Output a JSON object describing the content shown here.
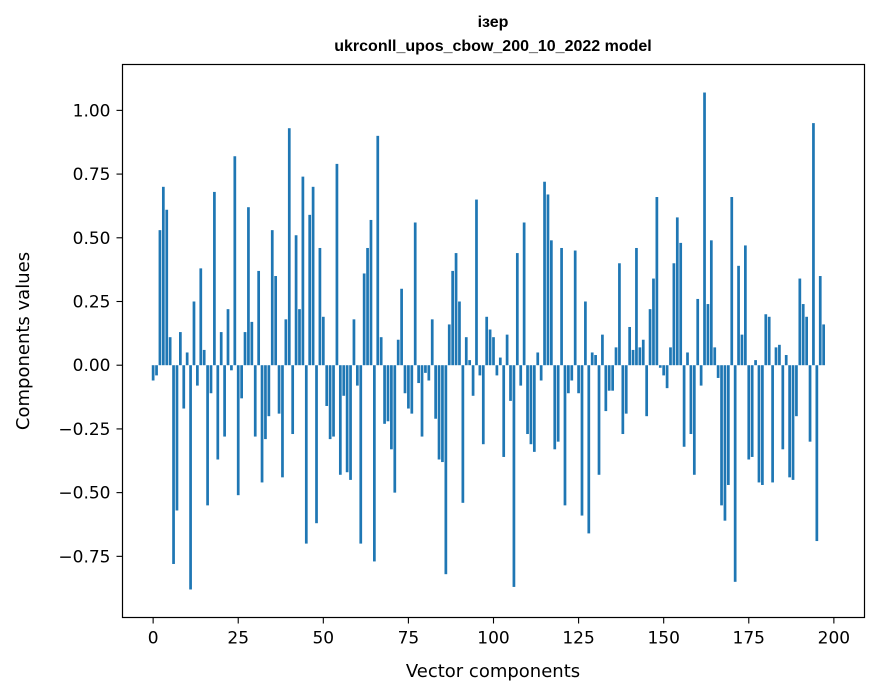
{
  "chart_data": {
    "type": "bar",
    "title_line1": "ізер",
    "title_line2": "ukrconll_upos_cbow_200_10_2022 model",
    "xlabel": "Vector components",
    "ylabel": "Components values",
    "xlim": [
      -9,
      209
    ],
    "ylim": [
      -0.99,
      1.18
    ],
    "xticks": [
      0,
      25,
      50,
      75,
      100,
      125,
      150,
      175,
      200
    ],
    "xtick_labels": [
      "0",
      "25",
      "50",
      "75",
      "100",
      "125",
      "150",
      "175",
      "200"
    ],
    "yticks": [
      -0.75,
      -0.5,
      -0.25,
      0.0,
      0.25,
      0.5,
      0.75,
      1.0
    ],
    "ytick_labels": [
      "−0.75",
      "−0.50",
      "−0.25",
      "0.00",
      "0.25",
      "0.50",
      "0.75",
      "1.00"
    ],
    "grid": false,
    "bar_color": "#1f77b4",
    "values": [
      -0.06,
      -0.04,
      0.53,
      0.7,
      0.61,
      0.11,
      -0.78,
      -0.57,
      0.13,
      -0.17,
      0.05,
      -0.88,
      0.25,
      -0.08,
      0.38,
      0.06,
      -0.55,
      -0.11,
      0.68,
      -0.37,
      0.13,
      -0.28,
      0.22,
      -0.02,
      0.82,
      -0.51,
      -0.13,
      0.13,
      0.62,
      0.17,
      -0.28,
      0.37,
      -0.46,
      -0.29,
      -0.2,
      0.53,
      0.35,
      -0.19,
      -0.44,
      0.18,
      0.93,
      -0.27,
      0.51,
      0.22,
      0.74,
      -0.7,
      0.59,
      0.7,
      -0.62,
      0.46,
      0.19,
      -0.16,
      -0.29,
      -0.28,
      0.79,
      -0.43,
      -0.12,
      -0.42,
      -0.45,
      0.18,
      -0.08,
      -0.7,
      0.36,
      0.46,
      0.57,
      -0.77,
      0.9,
      0.11,
      -0.23,
      -0.22,
      -0.33,
      -0.5,
      0.1,
      0.3,
      -0.11,
      -0.17,
      -0.19,
      0.56,
      -0.07,
      -0.28,
      -0.03,
      -0.06,
      0.18,
      -0.21,
      -0.37,
      -0.38,
      -0.82,
      0.16,
      0.37,
      0.44,
      0.25,
      -0.54,
      0.11,
      0.02,
      -0.12,
      0.65,
      -0.04,
      -0.31,
      0.19,
      0.14,
      0.11,
      -0.04,
      0.03,
      -0.36,
      0.12,
      -0.14,
      -0.87,
      0.44,
      -0.08,
      0.56,
      -0.27,
      -0.31,
      -0.34,
      0.05,
      -0.06,
      0.72,
      0.67,
      0.49,
      -0.33,
      -0.3,
      0.46,
      -0.55,
      -0.11,
      -0.06,
      0.45,
      -0.11,
      -0.59,
      0.25,
      -0.66,
      0.05,
      0.04,
      -0.43,
      0.12,
      -0.18,
      -0.1,
      -0.1,
      0.07,
      0.4,
      -0.27,
      -0.19,
      0.15,
      0.06,
      0.46,
      0.07,
      0.1,
      -0.2,
      0.22,
      0.34,
      0.66,
      -0.01,
      -0.04,
      -0.09,
      0.07,
      0.4,
      0.58,
      0.48,
      -0.32,
      0.05,
      -0.27,
      -0.43,
      0.26,
      -0.08,
      1.07,
      0.24,
      0.49,
      0.07,
      -0.05,
      -0.55,
      -0.61,
      -0.47,
      0.66,
      -0.85,
      0.39,
      0.12,
      0.47,
      -0.37,
      -0.36,
      0.02,
      -0.46,
      -0.47,
      0.2,
      0.19,
      -0.46,
      0.07,
      0.08,
      -0.33,
      0.04,
      -0.44,
      -0.45,
      -0.2,
      0.34,
      0.24,
      0.19,
      -0.3,
      0.95,
      -0.69,
      0.35,
      0.16
    ]
  }
}
